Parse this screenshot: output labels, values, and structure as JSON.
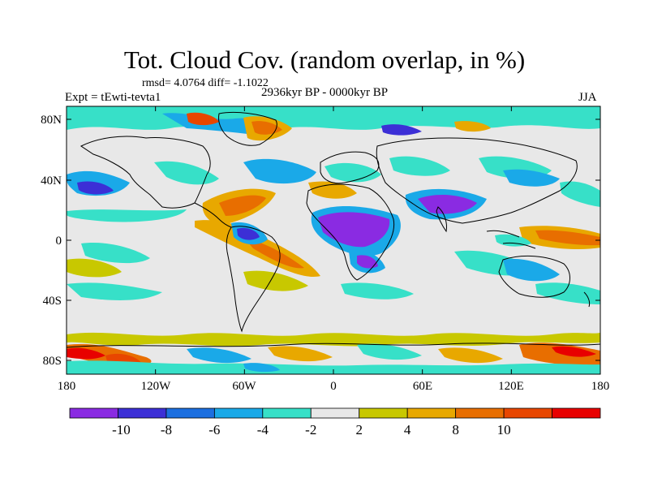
{
  "title": "Tot. Cloud Cov. (random overlap, in %)",
  "stats": "rmsd= 4.0764 diff= -1.1022",
  "experiment": "Expt = tEwti-tevta1",
  "period": "2936kyr BP - 0000kyr BP",
  "season": "JJA",
  "lat_ticks": [
    "80N",
    "40N",
    "0",
    "40S",
    "80S"
  ],
  "lon_ticks": [
    "180",
    "120W",
    "60W",
    "0",
    "60E",
    "120E",
    "180"
  ],
  "colorbar": {
    "colors": [
      "#8a2be2",
      "#3c2fd6",
      "#1c6fe0",
      "#1aa9e8",
      "#37e0c8",
      "#e8e8e8",
      "#c8c800",
      "#e8a800",
      "#e86e00",
      "#e84600",
      "#e80000"
    ],
    "labels": [
      "-10",
      "-8",
      "-6",
      "-4",
      "-2",
      "2",
      "4",
      "8",
      "10"
    ]
  },
  "map": {
    "background_color": "#e8e8e8",
    "coastline_color": "#000000"
  }
}
